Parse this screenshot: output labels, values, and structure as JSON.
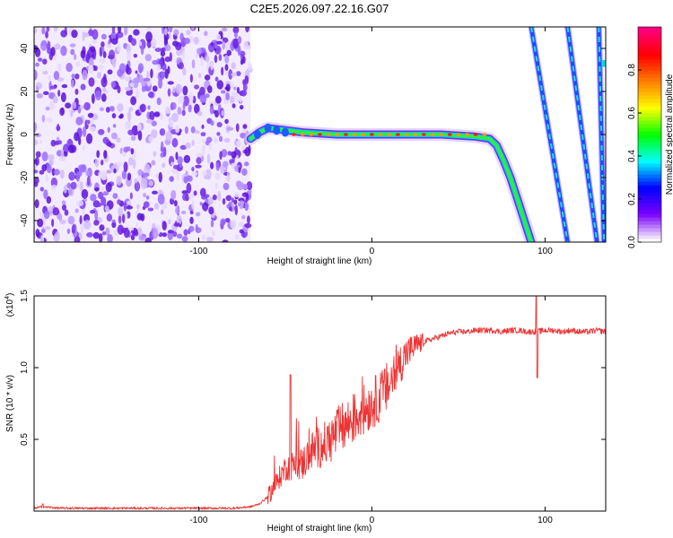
{
  "title": "C2E5.2026.097.22.16.G07",
  "chart_data": [
    {
      "type": "heatmap",
      "title": "C2E5.2026.097.22.16.G07",
      "xlabel": "Height of straight line (km)",
      "ylabel": "Frequency (Hz)",
      "xlim": [
        -195,
        135
      ],
      "ylim": [
        -50,
        50
      ],
      "xticks": [
        -100,
        0,
        100
      ],
      "xtick_labels": [
        "-100",
        "0",
        "100"
      ],
      "yticks": [
        -40,
        -20,
        0,
        20,
        40
      ],
      "ytick_labels": [
        "-40",
        "-20",
        "0",
        "20",
        "40"
      ],
      "colorbar": {
        "label": "Normalized spectral amplitude",
        "range": [
          0.0,
          1.0
        ],
        "ticks": [
          0.0,
          0.2,
          0.4,
          0.6,
          0.8
        ],
        "tick_labels": [
          "0.0",
          "0.2",
          "0.4",
          "0.6",
          "0.8"
        ],
        "colormap": [
          "#ffffff",
          "#7a00ff",
          "#0000ff",
          "#00ffff",
          "#00ff00",
          "#ffff00",
          "#ff8000",
          "#ff0000",
          "#ff0080"
        ]
      },
      "features": {
        "noise_region_x": [
          -195,
          -70
        ],
        "main_trace": [
          [
            -70,
            -2
          ],
          [
            -65,
            1
          ],
          [
            -60,
            3
          ],
          [
            -50,
            2
          ],
          [
            -40,
            1
          ],
          [
            -20,
            0
          ],
          [
            0,
            0
          ],
          [
            20,
            0
          ],
          [
            40,
            0
          ],
          [
            60,
            -1
          ],
          [
            68,
            -2
          ],
          [
            72,
            -5
          ],
          [
            76,
            -12
          ],
          [
            80,
            -20
          ],
          [
            84,
            -30
          ],
          [
            88,
            -40
          ],
          [
            92,
            -50
          ]
        ],
        "aliased_traces": [
          [
            [
              92,
              50
            ],
            [
              113,
              -50
            ]
          ],
          [
            [
              113,
              50
            ],
            [
              130,
              -50
            ]
          ],
          [
            [
              131,
              50
            ],
            [
              134,
              -50
            ]
          ]
        ]
      }
    },
    {
      "type": "line",
      "xlabel": "Height of straight line (km)",
      "ylabel": "SNR (10 * v/v)",
      "y_multiplier_label": "(x10",
      "y_multiplier_exp": "4",
      "xlim": [
        -195,
        135
      ],
      "ylim": [
        0,
        1.5
      ],
      "xticks": [
        -100,
        0,
        100
      ],
      "xtick_labels": [
        "-100",
        "0",
        "100"
      ],
      "yticks": [
        0.5,
        1.0,
        1.5
      ],
      "ytick_labels": [
        "0.5",
        "1.0",
        "1.5"
      ],
      "color": "#ee3333",
      "series": [
        {
          "name": "SNR",
          "x": [
            -195,
            -190,
            -180,
            -170,
            -160,
            -150,
            -140,
            -130,
            -120,
            -110,
            -100,
            -90,
            -80,
            -70,
            -65,
            -60,
            -55,
            -50,
            -45,
            -40,
            -35,
            -30,
            -25,
            -20,
            -15,
            -10,
            -5,
            0,
            5,
            10,
            15,
            20,
            25,
            30,
            35,
            40,
            45,
            50,
            55,
            60,
            65,
            70,
            75,
            80,
            85,
            90,
            95,
            100,
            105,
            110,
            115,
            120,
            125,
            130,
            135
          ],
          "y": [
            0.02,
            0.03,
            0.02,
            0.02,
            0.02,
            0.02,
            0.02,
            0.02,
            0.02,
            0.02,
            0.02,
            0.02,
            0.02,
            0.03,
            0.05,
            0.1,
            0.2,
            0.3,
            0.32,
            0.33,
            0.42,
            0.45,
            0.48,
            0.55,
            0.6,
            0.65,
            0.7,
            0.75,
            0.8,
            0.88,
            1.0,
            1.1,
            1.15,
            1.18,
            1.2,
            1.22,
            1.24,
            1.25,
            1.25,
            1.26,
            1.26,
            1.26,
            1.25,
            1.26,
            1.26,
            1.25,
            1.25,
            1.26,
            1.26,
            1.25,
            1.26,
            1.25,
            1.25,
            1.26,
            1.25
          ]
        }
      ],
      "annotations": [
        {
          "x": -47,
          "y": 0.95,
          "text": "spike"
        },
        {
          "x": 95,
          "y": 1.5,
          "text": "spike"
        }
      ]
    }
  ]
}
